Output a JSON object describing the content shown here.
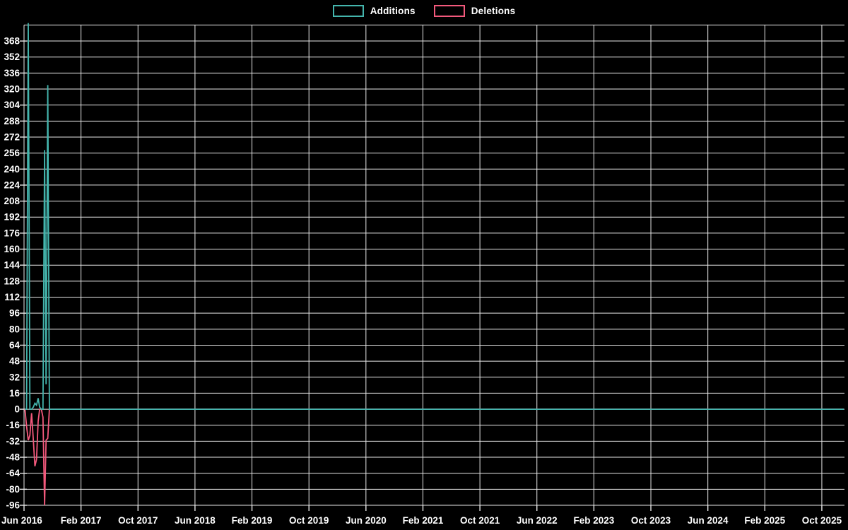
{
  "legend": {
    "items": [
      {
        "label": "Additions",
        "color": "#44b5ad"
      },
      {
        "label": "Deletions",
        "color": "#f3597c"
      }
    ]
  },
  "chart_data": {
    "type": "line",
    "title": "",
    "xlabel": "",
    "ylabel": "",
    "background_color": "#000000",
    "grid": true,
    "grid_color": "#e8e8e8",
    "text_color": "#ffffff",
    "legend_position": "top-center",
    "x_axis": {
      "start_label_date": "2016-06-01",
      "months_per_tick": 8,
      "tick_labels": [
        "Jun 2016",
        "Feb 2017",
        "Oct 2017",
        "Jun 2018",
        "Feb 2019",
        "Oct 2019",
        "Jun 2020",
        "Feb 2021",
        "Oct 2021",
        "Jun 2022",
        "Feb 2023",
        "Oct 2023",
        "Jun 2024",
        "Feb 2025",
        "Oct 2025"
      ]
    },
    "y_axis": {
      "min": -96,
      "max": 384,
      "tick_step": 16,
      "tick_labels": [
        "368",
        "352",
        "336",
        "320",
        "304",
        "288",
        "272",
        "256",
        "240",
        "224",
        "208",
        "192",
        "176",
        "160",
        "144",
        "128",
        "112",
        "96",
        "80",
        "64",
        "48",
        "32",
        "16",
        "0",
        "-16",
        "-32",
        "-48",
        "-64",
        "-80",
        "-96"
      ]
    },
    "series": [
      {
        "name": "Deletions",
        "color": "#f3597c",
        "points": [
          [
            "2016-06-05",
            0
          ],
          [
            "2016-06-12",
            -17
          ],
          [
            "2016-06-19",
            -31
          ],
          [
            "2016-06-26",
            -26
          ],
          [
            "2016-07-03",
            -4
          ],
          [
            "2016-07-10",
            -30
          ],
          [
            "2016-07-17",
            -57
          ],
          [
            "2016-07-24",
            -50
          ],
          [
            "2016-07-31",
            -12
          ],
          [
            "2016-08-07",
            0
          ],
          [
            "2016-08-14",
            0
          ],
          [
            "2016-08-21",
            -8
          ],
          [
            "2016-08-28",
            -96
          ],
          [
            "2016-09-04",
            -31
          ],
          [
            "2016-09-11",
            -29
          ],
          [
            "2016-09-18",
            0
          ],
          [
            "2026-01-04",
            0
          ]
        ]
      },
      {
        "name": "Additions",
        "color": "#44b5ad",
        "points": [
          [
            "2016-06-05",
            0
          ],
          [
            "2016-06-12",
            0
          ],
          [
            "2016-06-19",
            386
          ],
          [
            "2016-06-26",
            0
          ],
          [
            "2016-07-03",
            0
          ],
          [
            "2016-07-10",
            2
          ],
          [
            "2016-07-17",
            6
          ],
          [
            "2016-07-24",
            4
          ],
          [
            "2016-07-31",
            11
          ],
          [
            "2016-08-07",
            2
          ],
          [
            "2016-08-14",
            0
          ],
          [
            "2016-08-21",
            0
          ],
          [
            "2016-08-28",
            259
          ],
          [
            "2016-09-04",
            25
          ],
          [
            "2016-09-11",
            324
          ],
          [
            "2016-09-18",
            0
          ],
          [
            "2026-01-04",
            0
          ]
        ]
      }
    ]
  }
}
